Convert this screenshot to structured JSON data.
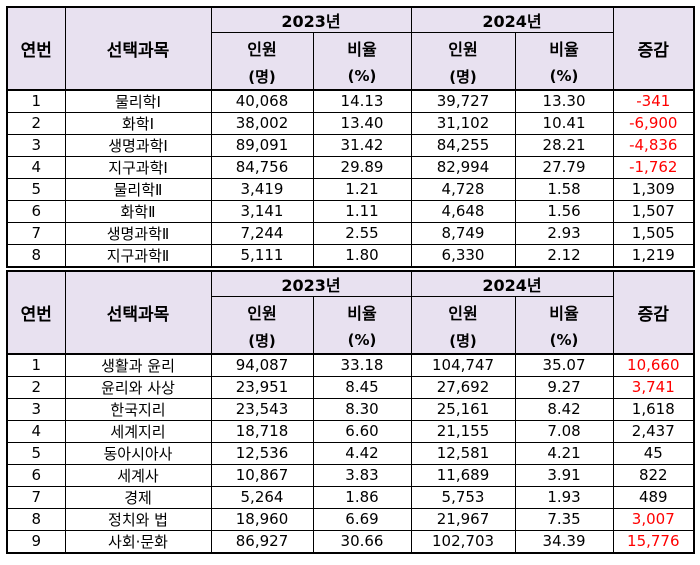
{
  "headers": {
    "no": "연번",
    "subject": "선택과목",
    "year1": "2023년",
    "year2": "2024년",
    "count": "인원",
    "count_unit": "(명)",
    "ratio": "비율",
    "ratio_unit": "(%)",
    "change": "증감"
  },
  "table1": {
    "rows": [
      {
        "no": "1",
        "subject": "물리학Ⅰ",
        "c23": "40,068",
        "r23": "14.13",
        "c24": "39,727",
        "r24": "13.30",
        "chg": "-341",
        "red": true
      },
      {
        "no": "2",
        "subject": "화학Ⅰ",
        "c23": "38,002",
        "r23": "13.40",
        "c24": "31,102",
        "r24": "10.41",
        "chg": "-6,900",
        "red": true
      },
      {
        "no": "3",
        "subject": "생명과학Ⅰ",
        "c23": "89,091",
        "r23": "31.42",
        "c24": "84,255",
        "r24": "28.21",
        "chg": "-4,836",
        "red": true
      },
      {
        "no": "4",
        "subject": "지구과학Ⅰ",
        "c23": "84,756",
        "r23": "29.89",
        "c24": "82,994",
        "r24": "27.79",
        "chg": "-1,762",
        "red": true
      },
      {
        "no": "5",
        "subject": "물리학Ⅱ",
        "c23": "3,419",
        "r23": "1.21",
        "c24": "4,728",
        "r24": "1.58",
        "chg": "1,309",
        "red": false
      },
      {
        "no": "6",
        "subject": "화학Ⅱ",
        "c23": "3,141",
        "r23": "1.11",
        "c24": "4,648",
        "r24": "1.56",
        "chg": "1,507",
        "red": false
      },
      {
        "no": "7",
        "subject": "생명과학Ⅱ",
        "c23": "7,244",
        "r23": "2.55",
        "c24": "8,749",
        "r24": "2.93",
        "chg": "1,505",
        "red": false
      },
      {
        "no": "8",
        "subject": "지구과학Ⅱ",
        "c23": "5,111",
        "r23": "1.80",
        "c24": "6,330",
        "r24": "2.12",
        "chg": "1,219",
        "red": false
      }
    ]
  },
  "table2": {
    "rows": [
      {
        "no": "1",
        "subject": "생활과 윤리",
        "c23": "94,087",
        "r23": "33.18",
        "c24": "104,747",
        "r24": "35.07",
        "chg": "10,660",
        "red": true
      },
      {
        "no": "2",
        "subject": "윤리와 사상",
        "c23": "23,951",
        "r23": "8.45",
        "c24": "27,692",
        "r24": "9.27",
        "chg": "3,741",
        "red": true
      },
      {
        "no": "3",
        "subject": "한국지리",
        "c23": "23,543",
        "r23": "8.30",
        "c24": "25,161",
        "r24": "8.42",
        "chg": "1,618",
        "red": false
      },
      {
        "no": "4",
        "subject": "세계지리",
        "c23": "18,718",
        "r23": "6.60",
        "c24": "21,155",
        "r24": "7.08",
        "chg": "2,437",
        "red": false
      },
      {
        "no": "5",
        "subject": "동아시아사",
        "c23": "12,536",
        "r23": "4.42",
        "c24": "12,581",
        "r24": "4.21",
        "chg": "45",
        "red": false
      },
      {
        "no": "6",
        "subject": "세계사",
        "c23": "10,867",
        "r23": "3.83",
        "c24": "11,689",
        "r24": "3.91",
        "chg": "822",
        "red": false
      },
      {
        "no": "7",
        "subject": "경제",
        "c23": "5,264",
        "r23": "1.86",
        "c24": "5,753",
        "r24": "1.93",
        "chg": "489",
        "red": false
      },
      {
        "no": "8",
        "subject": "정치와 법",
        "c23": "18,960",
        "r23": "6.69",
        "c24": "21,967",
        "r24": "7.35",
        "chg": "3,007",
        "red": true
      },
      {
        "no": "9",
        "subject": "사회·문화",
        "c23": "86,927",
        "r23": "30.66",
        "c24": "102,703",
        "r24": "34.39",
        "chg": "15,776",
        "red": true
      }
    ]
  },
  "colors": {
    "header_bg": "#e8e1f0",
    "highlight": "#ff0000"
  }
}
